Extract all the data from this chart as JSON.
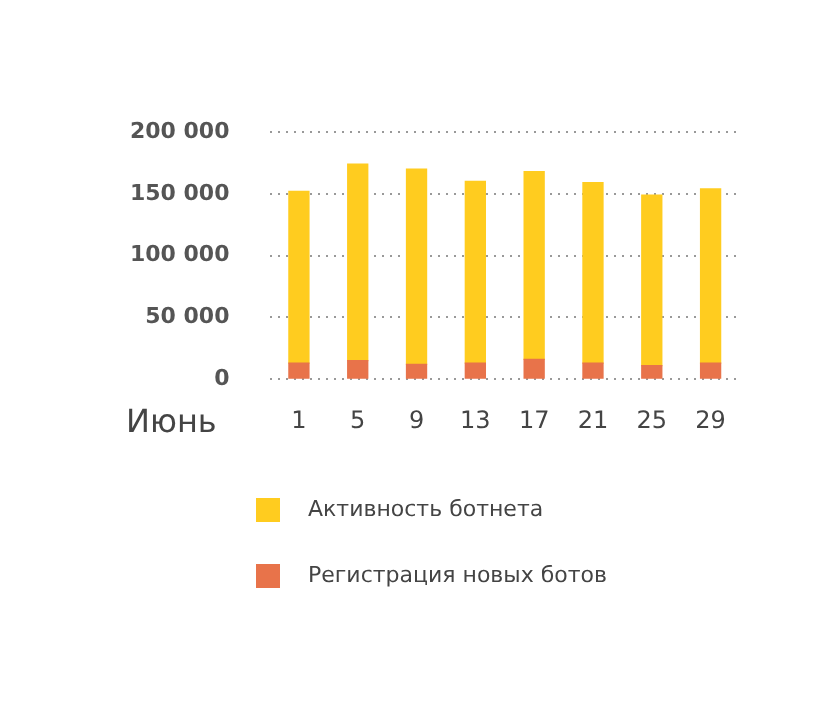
{
  "chart_data": {
    "type": "bar",
    "stacked": true,
    "xlabel": "Июнь",
    "categories": [
      "1",
      "5",
      "9",
      "13",
      "17",
      "21",
      "25",
      "29"
    ],
    "series": [
      {
        "name": "Регистрация новых ботов",
        "color": "#e8734a",
        "values": [
          13000,
          15000,
          12000,
          13000,
          16000,
          13000,
          11000,
          13000
        ]
      },
      {
        "name": "Активность ботнета",
        "color": "#ffcc1f",
        "values": [
          139000,
          159000,
          158000,
          147000,
          152000,
          146000,
          138000,
          141000
        ]
      }
    ],
    "ylim": [
      0,
      200000
    ],
    "yticks": [
      {
        "value": 0,
        "label": "0"
      },
      {
        "value": 50000,
        "label": "50 000"
      },
      {
        "value": 100000,
        "label": "100 000"
      },
      {
        "value": 150000,
        "label": "150 000"
      },
      {
        "value": 200000,
        "label": "200 000"
      }
    ],
    "grid": "y",
    "legend": "bottom"
  }
}
